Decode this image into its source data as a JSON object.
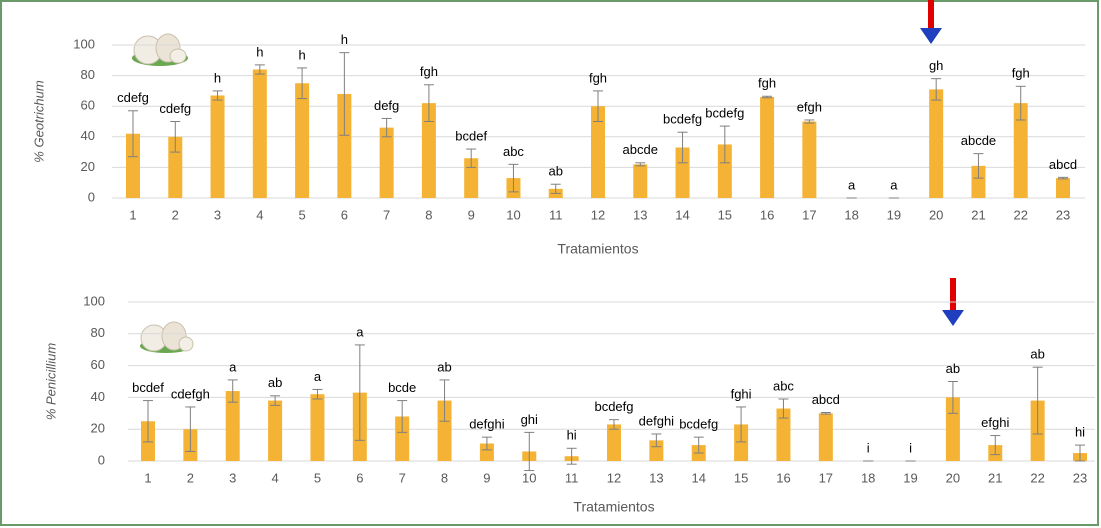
{
  "chart_data": [
    {
      "type": "bar",
      "y_axis_label": "% Geotrichum",
      "x_axis_label": "Tratamientos",
      "categories": [
        "1",
        "2",
        "3",
        "4",
        "5",
        "6",
        "7",
        "8",
        "9",
        "10",
        "11",
        "12",
        "13",
        "14",
        "15",
        "16",
        "17",
        "18",
        "19",
        "20",
        "21",
        "22",
        "23"
      ],
      "values": [
        42,
        40,
        67,
        84,
        75,
        68,
        46,
        62,
        26,
        13,
        6,
        60,
        22,
        33,
        35,
        66,
        50,
        0,
        0,
        71,
        21,
        62,
        13
      ],
      "errors": [
        15,
        10,
        3,
        3,
        10,
        27,
        6,
        12,
        6,
        9,
        3,
        10,
        1,
        10,
        12,
        0.5,
        1,
        0,
        0,
        7,
        8,
        11,
        0.5
      ],
      "letters": [
        "cdefg",
        "cdefg",
        "h",
        "h",
        "h",
        "h",
        "defg",
        "fgh",
        "bcdef",
        "abc",
        "ab",
        "fgh",
        "abcde",
        "bcdefg",
        "bcdefg",
        "fgh",
        "efgh",
        "a",
        "a",
        "gh",
        "abcde",
        "fgh",
        "abcd"
      ],
      "color": "#f5b335",
      "error_color": "#7f7f7f",
      "ylim": [
        0,
        100
      ],
      "yticks": [
        0,
        20,
        40,
        60,
        80,
        100
      ],
      "grid": true
    },
    {
      "type": "bar",
      "y_axis_label": "% Penicillium",
      "x_axis_label": "Tratamientos",
      "categories": [
        "1",
        "2",
        "3",
        "4",
        "5",
        "6",
        "7",
        "8",
        "9",
        "10",
        "11",
        "12",
        "13",
        "14",
        "15",
        "16",
        "17",
        "18",
        "19",
        "20",
        "21",
        "22",
        "23"
      ],
      "values": [
        25,
        20,
        44,
        38,
        42,
        43,
        28,
        38,
        11,
        6,
        3,
        23,
        13,
        10,
        23,
        33,
        30,
        0,
        0,
        40,
        10,
        38,
        5
      ],
      "errors": [
        13,
        14,
        7,
        3,
        3,
        30,
        10,
        13,
        4,
        12,
        5,
        3,
        4,
        5,
        11,
        6,
        0.5,
        0,
        0,
        10,
        6,
        21,
        5
      ],
      "letters": [
        "bcdef",
        "cdefgh",
        "a",
        "ab",
        "a",
        "a",
        "bcde",
        "ab",
        "defghi",
        "ghi",
        "hi",
        "bcdefg",
        "defghi",
        "bcdefg",
        "fghi",
        "abc",
        "abcd",
        "i",
        "i",
        "ab",
        "efghi",
        "ab",
        "hi"
      ],
      "color": "#f5b335",
      "error_color": "#7f7f7f",
      "ylim": [
        0,
        100
      ],
      "yticks": [
        0,
        20,
        40,
        60,
        80,
        100
      ],
      "grid": true
    }
  ]
}
